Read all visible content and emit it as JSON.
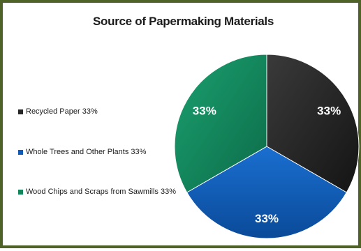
{
  "chart_data": {
    "type": "pie",
    "title": "Source of Papermaking Materials",
    "legend_position": "left",
    "slices": [
      {
        "name": "Recycled Paper",
        "value": 33,
        "label": "33%",
        "legend_label": "Recycled Paper 33%",
        "color": "#262626"
      },
      {
        "name": "Whole Trees and Other Plants",
        "value": 33,
        "label": "33%",
        "legend_label": "Whole Trees and Other Plants 33%",
        "color": "#0f5bb5"
      },
      {
        "name": "Wood Chips and Scraps from Sawmills",
        "value": 33,
        "label": "33%",
        "legend_label": "Wood Chips and Scraps from Sawmills 33%",
        "color": "#13855a"
      }
    ]
  }
}
